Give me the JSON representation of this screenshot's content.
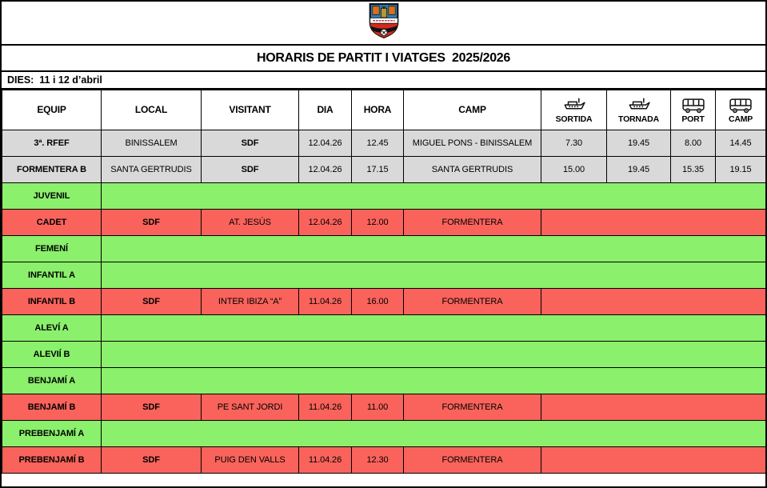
{
  "header": {
    "title": "HORARIS DE PARTIT I VIATGES  2025/2026",
    "dies": "DIES:  11 i 12 d’abril"
  },
  "logo": {
    "icon": "club-crest-icon"
  },
  "colors": {
    "gray": "#d9d9d9",
    "green": "#8bf06c",
    "red": "#f9635b",
    "border": "#000000"
  },
  "table": {
    "columns": [
      {
        "key": "equip",
        "label": "EQUIP"
      },
      {
        "key": "local",
        "label": "LOCAL"
      },
      {
        "key": "visitant",
        "label": "VISITANT"
      },
      {
        "key": "dia",
        "label": "DIA"
      },
      {
        "key": "hora",
        "label": "HORA"
      },
      {
        "key": "camp",
        "label": "CAMP"
      },
      {
        "key": "sortida",
        "label": "SORTIDA",
        "icon": "ferry-icon"
      },
      {
        "key": "tornada",
        "label": "TORNADA",
        "icon": "ferry-icon"
      },
      {
        "key": "port",
        "label": "PORT",
        "icon": "bus-icon"
      },
      {
        "key": "camp_bus",
        "label": "CAMP",
        "icon": "bus-icon"
      }
    ],
    "rows": [
      {
        "color": "gray",
        "cells": [
          {
            "t": "3ª. RFEF",
            "b": true
          },
          {
            "t": "BINISSALEM"
          },
          {
            "t": "SDF",
            "b": true
          },
          {
            "t": "12.04.26"
          },
          {
            "t": "12.45"
          },
          {
            "t": "MIGUEL PONS - BINISSALEM"
          },
          {
            "t": "7.30"
          },
          {
            "t": "19.45"
          },
          {
            "t": "8.00"
          },
          {
            "t": "14.45"
          }
        ]
      },
      {
        "color": "gray",
        "cells": [
          {
            "t": "FORMENTERA B",
            "b": true
          },
          {
            "t": "SANTA GERTRUDIS"
          },
          {
            "t": "SDF",
            "b": true
          },
          {
            "t": "12.04.26"
          },
          {
            "t": "17.15"
          },
          {
            "t": "SANTA GERTRUDIS"
          },
          {
            "t": "15.00"
          },
          {
            "t": "19.45"
          },
          {
            "t": "15.35"
          },
          {
            "t": "19.15"
          }
        ]
      },
      {
        "color": "green",
        "cells": [
          {
            "t": "JUVENIL",
            "b": true
          },
          {
            "t": "",
            "span": 9
          }
        ]
      },
      {
        "color": "red",
        "cells": [
          {
            "t": "CADET",
            "b": true
          },
          {
            "t": "SDF",
            "b": true
          },
          {
            "t": "AT. JESÚS"
          },
          {
            "t": "12.04.26"
          },
          {
            "t": "12.00"
          },
          {
            "t": "FORMENTERA"
          },
          {
            "t": "",
            "span": 4
          }
        ]
      },
      {
        "color": "green",
        "cells": [
          {
            "t": "FEMENÍ",
            "b": true
          },
          {
            "t": "",
            "span": 9
          }
        ]
      },
      {
        "color": "green",
        "cells": [
          {
            "t": "INFANTIL A",
            "b": true
          },
          {
            "t": "",
            "span": 9
          }
        ]
      },
      {
        "color": "red",
        "cells": [
          {
            "t": "INFANTIL B",
            "b": true
          },
          {
            "t": "SDF",
            "b": true
          },
          {
            "t": "INTER IBIZA “A”"
          },
          {
            "t": "11.04.26"
          },
          {
            "t": "16.00"
          },
          {
            "t": "FORMENTERA"
          },
          {
            "t": "",
            "span": 4
          }
        ]
      },
      {
        "color": "green",
        "cells": [
          {
            "t": "ALEVÍ A",
            "b": true
          },
          {
            "t": "",
            "span": 9
          }
        ]
      },
      {
        "color": "green",
        "cells": [
          {
            "t": "ALEVIÍ B",
            "b": true
          },
          {
            "t": "",
            "span": 9
          }
        ]
      },
      {
        "color": "green",
        "cells": [
          {
            "t": "BENJAMÍ A",
            "b": true
          },
          {
            "t": "",
            "span": 9
          }
        ]
      },
      {
        "color": "red",
        "cells": [
          {
            "t": "BENJAMÍ B",
            "b": true
          },
          {
            "t": "SDF",
            "b": true
          },
          {
            "t": "PE SANT JORDI"
          },
          {
            "t": "11.04.26"
          },
          {
            "t": "11.00"
          },
          {
            "t": "FORMENTERA"
          },
          {
            "t": "",
            "span": 4
          }
        ]
      },
      {
        "color": "green",
        "cells": [
          {
            "t": "PREBENJAMÍ A",
            "b": true
          },
          {
            "t": "",
            "span": 9
          }
        ]
      },
      {
        "color": "red",
        "cells": [
          {
            "t": "PREBENJAMÍ B",
            "b": true
          },
          {
            "t": "SDF",
            "b": true
          },
          {
            "t": "PUIG DEN VALLS"
          },
          {
            "t": "11.04.26"
          },
          {
            "t": "12.30"
          },
          {
            "t": "FORMENTERA"
          },
          {
            "t": "",
            "span": 4
          }
        ]
      }
    ]
  }
}
